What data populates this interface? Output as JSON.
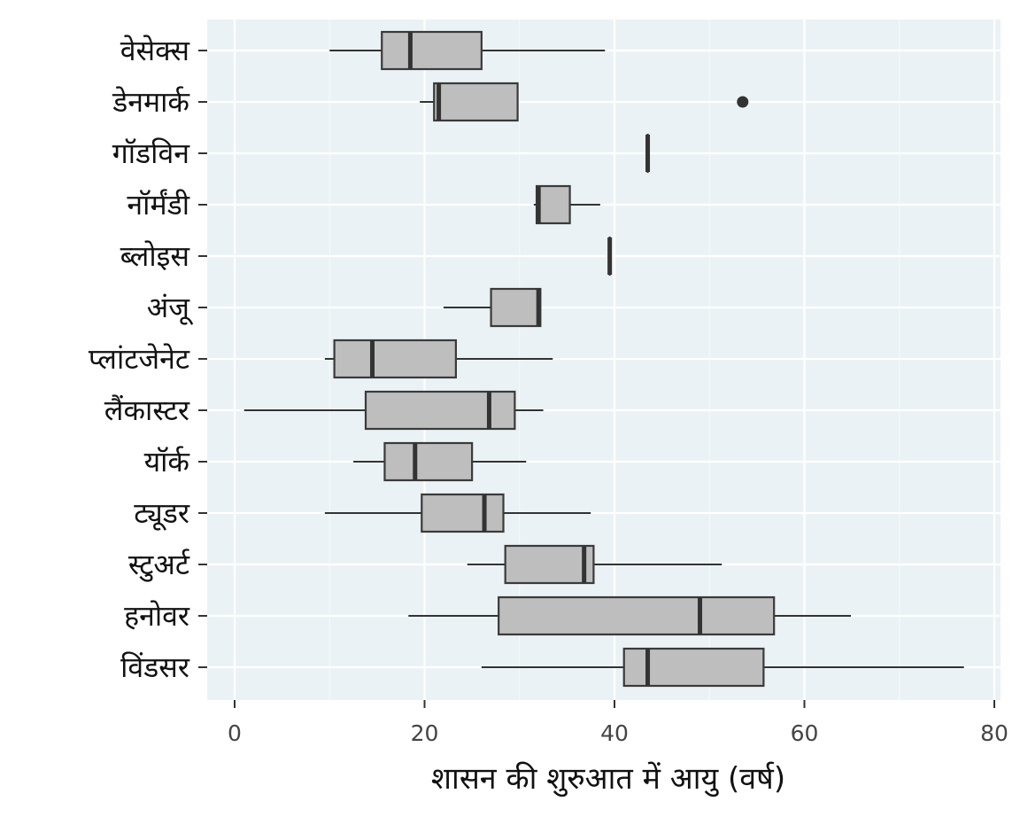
{
  "chart_data": {
    "type": "boxplot",
    "orientation": "horizontal",
    "title": "",
    "xlabel": "शासन की शुरुआत में आयु (वर्ष)",
    "ylabel": "",
    "xlim": [
      -3,
      80
    ],
    "xticks": [
      0,
      20,
      40,
      60,
      80
    ],
    "grid": true,
    "colors": {
      "panel": "#ebf2f5",
      "box_fill": "#bebebe",
      "box_edge": "#3a3a3a",
      "line": "#333333"
    },
    "categories": [
      "वेसेक्स",
      "डेनमार्क",
      "गॉडविन",
      "नॉर्मंडी",
      "ब्लोइस",
      "अंजू",
      "प्लांटजेनेट",
      "लैंकास्टर",
      "यॉर्क",
      "ट्यूडर",
      "स्टुअर्ट",
      "हनोवर",
      "विंडसर"
    ],
    "series": [
      {
        "category": "वेसेक्स",
        "whisker_low": 10,
        "q1": 15.5,
        "median": 18.5,
        "q3": 26,
        "whisker_high": 39,
        "outliers": []
      },
      {
        "category": "डेनमार्क",
        "whisker_low": 19.5,
        "q1": 21,
        "median": 21.5,
        "q3": 29.8,
        "whisker_high": 29.8,
        "outliers": [
          53.5
        ]
      },
      {
        "category": "गॉडविन",
        "whisker_low": 43.5,
        "q1": 43.5,
        "median": 43.5,
        "q3": 43.5,
        "whisker_high": 43.5,
        "outliers": []
      },
      {
        "category": "नॉर्मंडी",
        "whisker_low": 31.5,
        "q1": 31.8,
        "median": 32,
        "q3": 35.3,
        "whisker_high": 38.5,
        "outliers": []
      },
      {
        "category": "ब्लोइस",
        "whisker_low": 39.5,
        "q1": 39.5,
        "median": 39.5,
        "q3": 39.5,
        "whisker_high": 39.5,
        "outliers": []
      },
      {
        "category": "अंजू",
        "whisker_low": 22,
        "q1": 27,
        "median": 32,
        "q3": 32.2,
        "whisker_high": 32.2,
        "outliers": []
      },
      {
        "category": "प्लांटजेनेट",
        "whisker_low": 9.5,
        "q1": 10.5,
        "median": 14.5,
        "q3": 23.3,
        "whisker_high": 33.5,
        "outliers": []
      },
      {
        "category": "लैंकास्टर",
        "whisker_low": 1,
        "q1": 13.8,
        "median": 26.8,
        "q3": 29.5,
        "whisker_high": 32.5,
        "outliers": []
      },
      {
        "category": "यॉर्क",
        "whisker_low": 12.5,
        "q1": 15.8,
        "median": 19,
        "q3": 25,
        "whisker_high": 30.7,
        "outliers": []
      },
      {
        "category": "ट्यूडर",
        "whisker_low": 9.5,
        "q1": 19.7,
        "median": 26.3,
        "q3": 28.3,
        "whisker_high": 37.5,
        "outliers": []
      },
      {
        "category": "स्टुअर्ट",
        "whisker_low": 24.5,
        "q1": 28.5,
        "median": 36.8,
        "q3": 37.8,
        "whisker_high": 51.3,
        "outliers": []
      },
      {
        "category": "हनोवर",
        "whisker_low": 18.3,
        "q1": 27.8,
        "median": 49,
        "q3": 56.8,
        "whisker_high": 64.9,
        "outliers": []
      },
      {
        "category": "विंडसर",
        "whisker_low": 26,
        "q1": 41,
        "median": 43.5,
        "q3": 55.7,
        "whisker_high": 76.8,
        "outliers": []
      }
    ]
  }
}
